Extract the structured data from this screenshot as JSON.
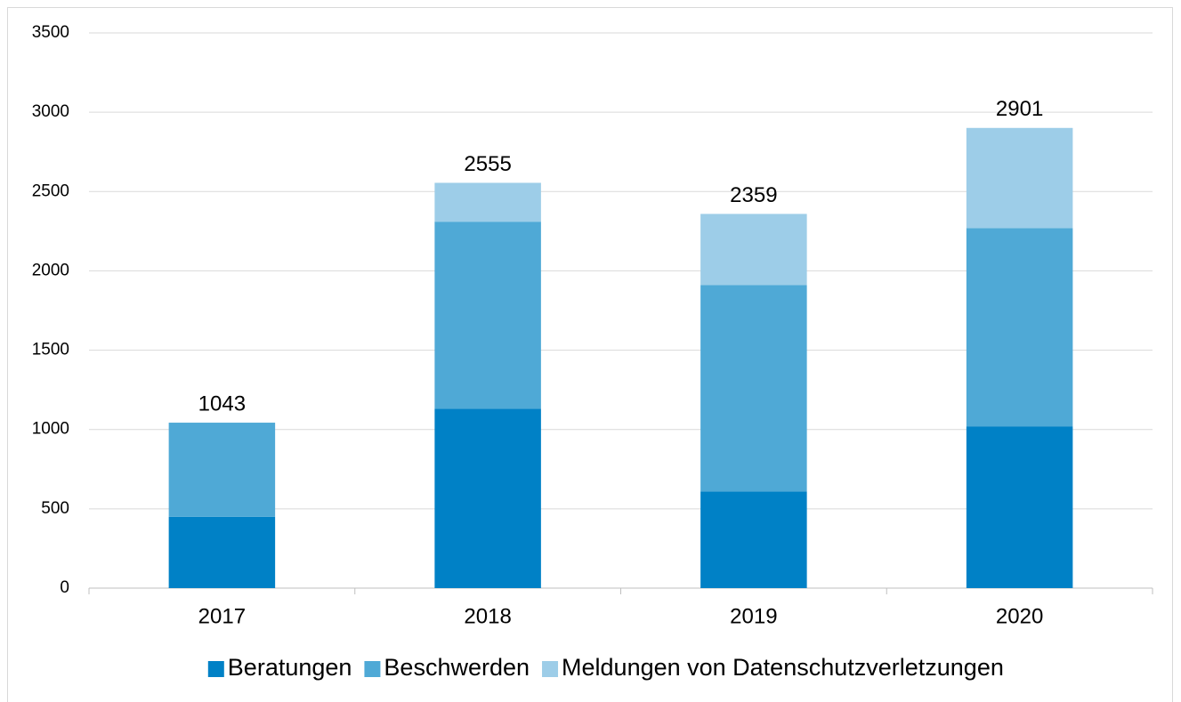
{
  "chart_data": {
    "type": "stacked_bar",
    "categories": [
      "2017",
      "2018",
      "2019",
      "2020"
    ],
    "series": [
      {
        "name": "Beratungen",
        "color": "#0081c6",
        "values": [
          450,
          1130,
          610,
          1020
        ]
      },
      {
        "name": "Beschwerden",
        "color": "#4fa9d6",
        "values": [
          593,
          1180,
          1300,
          1250
        ]
      },
      {
        "name": "Meldungen von Datenschutzverletzungen",
        "color": "#9dcde8",
        "values": [
          0,
          245,
          449,
          631
        ]
      }
    ],
    "totals": [
      1043,
      2555,
      2359,
      2901
    ],
    "ylim": [
      0,
      3500
    ],
    "yticks": [
      0,
      500,
      1000,
      1500,
      2000,
      2500,
      3000,
      3500
    ],
    "grid": true,
    "legend": "bottom"
  }
}
